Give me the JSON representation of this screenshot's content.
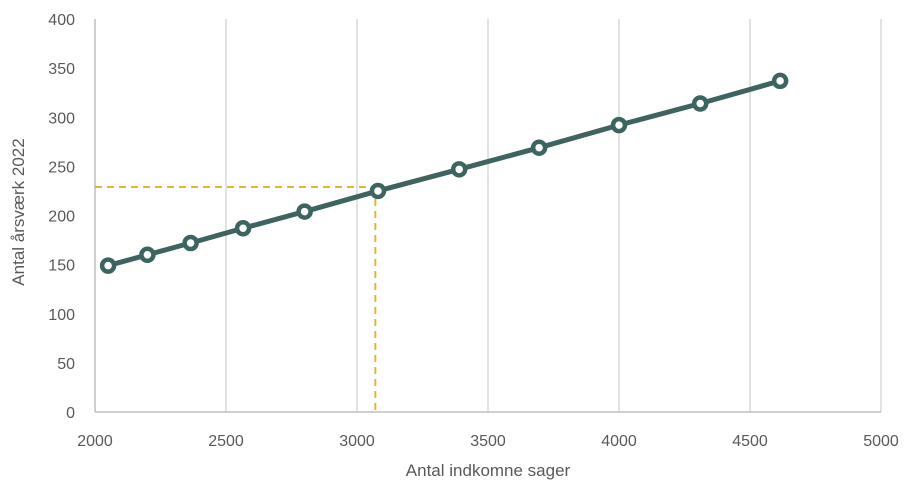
{
  "chart_data": {
    "type": "line",
    "title": "",
    "xlabel": "Antal indkomne sager",
    "ylabel": "Antal årsværk 2022",
    "xlim": [
      2000,
      5000
    ],
    "ylim": [
      0,
      400
    ],
    "x_ticks": [
      2000,
      2500,
      3000,
      3500,
      4000,
      4500,
      5000
    ],
    "y_ticks": [
      0,
      50,
      100,
      150,
      200,
      250,
      300,
      350,
      400
    ],
    "x_tick_labels": [
      "2000",
      "2500",
      "3000",
      "3500",
      "4000",
      "4500",
      "5000"
    ],
    "y_tick_labels": [
      "0",
      "50",
      "100",
      "150",
      "200",
      "250",
      "300",
      "350",
      "400"
    ],
    "grid": {
      "vertical": true,
      "horizontal": false
    },
    "legend": "none",
    "series": [
      {
        "color": "#3d6460",
        "marker": "circle",
        "x": [
          2050,
          2200,
          2365,
          2565,
          2800,
          3080,
          3390,
          3695,
          4000,
          4310,
          4615
        ],
        "y": [
          149,
          160,
          172,
          187,
          204,
          225,
          247,
          269,
          292,
          314,
          337
        ]
      }
    ],
    "reference": {
      "x": 3070,
      "y": 229,
      "color": "#e6b532",
      "style": "dashed"
    }
  }
}
